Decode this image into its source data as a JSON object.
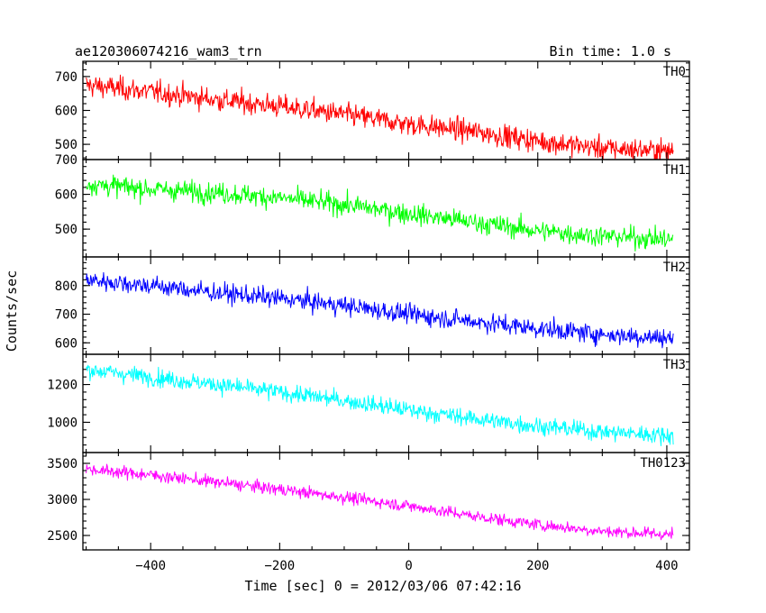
{
  "chart_data": {
    "type": "line",
    "title": "ae120306074216_wam3_trn",
    "bin_label": "Bin time: 1.0 s",
    "xlabel": "Time [sec] 0 = 2012/03/06 07:42:16",
    "ylabel": "Counts/sec",
    "xlim": [
      -505,
      435
    ],
    "x_ticks": [
      -400,
      -200,
      0,
      200,
      400
    ],
    "x_tick_labels": [
      "−400",
      "−200",
      "0",
      "200",
      "400"
    ],
    "x_range": [
      -500,
      410
    ],
    "grid": false,
    "panels": [
      {
        "name": "TH0",
        "color": "#ff0000",
        "ylim": [
          455,
          745
        ],
        "y_ticks": [
          500,
          600,
          700
        ],
        "y_tick_labels": [
          "500",
          "600",
          "700"
        ],
        "trend": {
          "x": [
            -500,
            -400,
            -300,
            -200,
            -100,
            0,
            100,
            200,
            300,
            410
          ],
          "y": [
            675,
            655,
            632,
            612,
            588,
            560,
            538,
            510,
            488,
            480
          ]
        },
        "noise": 28
      },
      {
        "name": "TH1",
        "color": "#00ff00",
        "ylim": [
          420,
          700
        ],
        "y_ticks": [
          500,
          600,
          700
        ],
        "y_tick_labels": [
          "500",
          "600",
          "700"
        ],
        "trend": {
          "x": [
            -500,
            -400,
            -300,
            -200,
            -100,
            0,
            100,
            200,
            300,
            410
          ],
          "y": [
            630,
            615,
            605,
            590,
            570,
            545,
            520,
            495,
            480,
            470
          ]
        },
        "noise": 25
      },
      {
        "name": "TH2",
        "color": "#0000ff",
        "ylim": [
          560,
          900
        ],
        "y_ticks": [
          600,
          700,
          800
        ],
        "y_tick_labels": [
          "600",
          "700",
          "800"
        ],
        "trend": {
          "x": [
            -500,
            -400,
            -300,
            -200,
            -100,
            0,
            100,
            200,
            300,
            410
          ],
          "y": [
            820,
            800,
            775,
            755,
            730,
            700,
            675,
            650,
            630,
            615
          ]
        },
        "noise": 28
      },
      {
        "name": "TH3",
        "color": "#00ffff",
        "ylim": [
          840,
          1360
        ],
        "y_ticks": [
          1000,
          1200
        ],
        "y_tick_labels": [
          "1000",
          "1200"
        ],
        "trend": {
          "x": [
            -500,
            -400,
            -300,
            -200,
            -100,
            0,
            100,
            200,
            300,
            410
          ],
          "y": [
            1280,
            1240,
            1200,
            1160,
            1115,
            1065,
            1020,
            980,
            950,
            930
          ]
        },
        "noise": 38
      },
      {
        "name": "TH0123",
        "color": "#ff00ff",
        "ylim": [
          2300,
          3650
        ],
        "y_ticks": [
          2500,
          3000,
          3500
        ],
        "y_tick_labels": [
          "2500",
          "3000",
          "3500"
        ],
        "trend": {
          "x": [
            -500,
            -400,
            -300,
            -200,
            -100,
            0,
            100,
            200,
            300,
            410
          ],
          "y": [
            3420,
            3340,
            3240,
            3140,
            3030,
            2910,
            2770,
            2650,
            2560,
            2510
          ]
        },
        "noise": 70
      }
    ]
  }
}
